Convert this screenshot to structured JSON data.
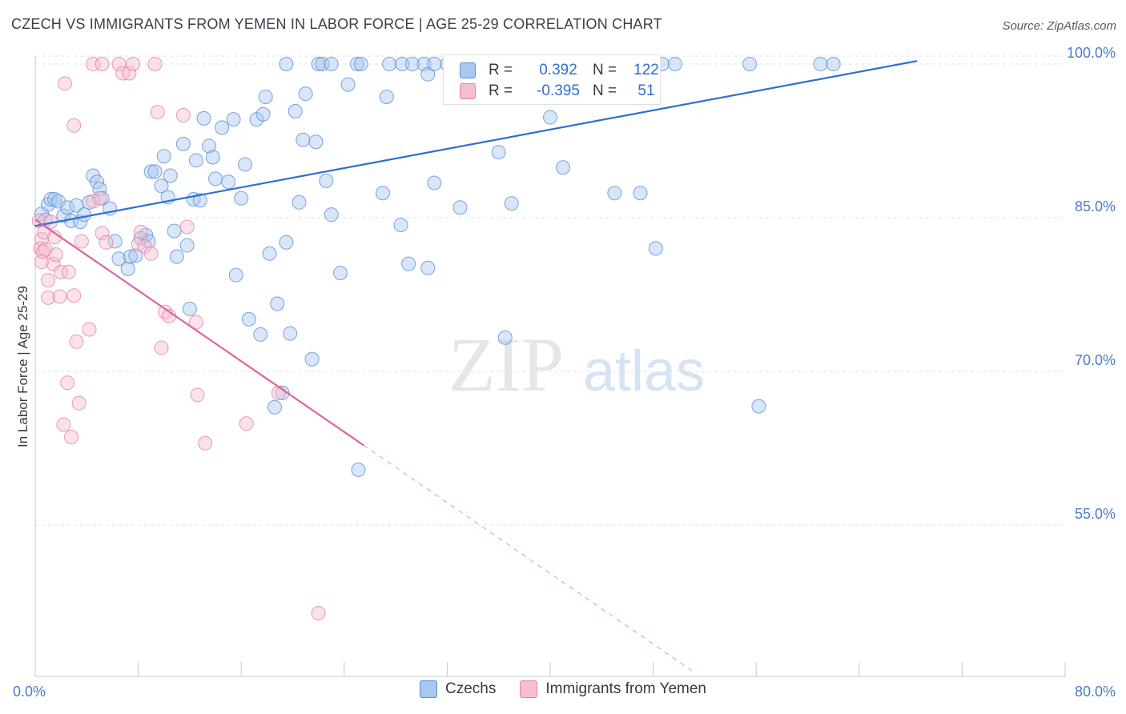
{
  "title": "CZECH VS IMMIGRANTS FROM YEMEN IN LABOR FORCE | AGE 25-29 CORRELATION CHART",
  "source": "Source: ZipAtlas.com",
  "watermark": {
    "zip": "ZIP",
    "atlas": "atlas"
  },
  "colors": {
    "blue": "#5b8fd6",
    "blue_fill": "#a9c8ef",
    "blue_line": "#2f6fce",
    "pink": "#e77fa2",
    "pink_fill": "#f5bfd0",
    "pink_line": "#e0659a",
    "tick_label": "#4a7cc9",
    "grid": "#dfe2e8"
  },
  "legend": {
    "stats": [
      {
        "r_label": "R =",
        "r_value": "0.392",
        "n_label": "N =",
        "n_value": "122"
      },
      {
        "r_label": "R =",
        "r_value": "-0.395",
        "n_label": "N =",
        "n_value": "51"
      }
    ],
    "bottom": [
      "Czechs",
      "Immigrants from Yemen"
    ]
  },
  "chart_data": {
    "type": "scatter",
    "xlabel": "",
    "ylabel": "In Labor Force | Age 25-29",
    "xlim": [
      0,
      80
    ],
    "ylim": [
      40,
      104
    ],
    "x_ticks": [
      0,
      8,
      16,
      24,
      32,
      40,
      48,
      56,
      64,
      72,
      80
    ],
    "x_tick_labels": [
      {
        "value": 0,
        "label": "0.0%"
      },
      {
        "value": 80,
        "label": "80.0%"
      }
    ],
    "y_ticks": [
      {
        "value": 55,
        "label": "55.0%"
      },
      {
        "value": 70,
        "label": "70.0%"
      },
      {
        "value": 85,
        "label": "85.0%"
      },
      {
        "value": 100,
        "label": "100.0%"
      }
    ],
    "grid": true,
    "legend_position": "top-center",
    "series": [
      {
        "name": "Czechs",
        "trend": {
          "x": [
            0,
            68.5
          ],
          "y": [
            84.2,
            100.3
          ]
        },
        "points": [
          [
            0.5,
            85.4
          ],
          [
            0.8,
            84.8
          ],
          [
            1.0,
            86.3
          ],
          [
            1.2,
            86.8
          ],
          [
            1.5,
            86.8
          ],
          [
            1.8,
            86.6
          ],
          [
            2.2,
            85.2
          ],
          [
            2.5,
            86.0
          ],
          [
            2.8,
            84.7
          ],
          [
            3.2,
            86.2
          ],
          [
            3.5,
            84.6
          ],
          [
            3.8,
            85.3
          ],
          [
            4.2,
            86.5
          ],
          [
            4.5,
            89.1
          ],
          [
            4.8,
            88.5
          ],
          [
            5.0,
            87.8
          ],
          [
            5.2,
            86.9
          ],
          [
            5.8,
            85.9
          ],
          [
            6.2,
            82.7
          ],
          [
            6.5,
            81.0
          ],
          [
            7.2,
            80.0
          ],
          [
            7.4,
            81.2
          ],
          [
            7.8,
            81.3
          ],
          [
            8.2,
            83.0
          ],
          [
            8.6,
            83.3
          ],
          [
            8.8,
            82.7
          ],
          [
            9.0,
            89.5
          ],
          [
            9.3,
            89.5
          ],
          [
            9.8,
            88.1
          ],
          [
            10.0,
            91.0
          ],
          [
            10.3,
            87.0
          ],
          [
            10.5,
            89.1
          ],
          [
            10.8,
            83.7
          ],
          [
            11.0,
            81.2
          ],
          [
            11.5,
            92.2
          ],
          [
            11.8,
            82.3
          ],
          [
            12.0,
            76.1
          ],
          [
            12.3,
            86.8
          ],
          [
            12.5,
            90.6
          ],
          [
            12.8,
            86.7
          ],
          [
            13.1,
            94.7
          ],
          [
            13.5,
            92.0
          ],
          [
            13.8,
            90.9
          ],
          [
            14.0,
            88.8
          ],
          [
            14.5,
            93.8
          ],
          [
            15.0,
            88.5
          ],
          [
            15.4,
            94.6
          ],
          [
            15.6,
            79.4
          ],
          [
            16.0,
            86.9
          ],
          [
            16.3,
            90.2
          ],
          [
            16.6,
            75.1
          ],
          [
            17.2,
            94.6
          ],
          [
            17.5,
            73.6
          ],
          [
            17.7,
            95.1
          ],
          [
            17.9,
            96.8
          ],
          [
            18.2,
            81.5
          ],
          [
            18.6,
            66.5
          ],
          [
            18.8,
            76.6
          ],
          [
            19.2,
            67.9
          ],
          [
            19.5,
            82.6
          ],
          [
            19.8,
            73.7
          ],
          [
            20.2,
            95.4
          ],
          [
            20.5,
            86.5
          ],
          [
            20.8,
            92.6
          ],
          [
            21.0,
            97.1
          ],
          [
            21.5,
            71.2
          ],
          [
            21.8,
            92.4
          ],
          [
            22.6,
            88.6
          ],
          [
            23.0,
            85.3
          ],
          [
            23.7,
            79.6
          ],
          [
            24.3,
            98.0
          ],
          [
            25.1,
            60.4
          ],
          [
            27.0,
            87.4
          ],
          [
            27.3,
            96.8
          ],
          [
            28.4,
            84.3
          ],
          [
            29.0,
            80.5
          ],
          [
            30.5,
            80.1
          ],
          [
            31.0,
            88.4
          ],
          [
            33.0,
            86.0
          ],
          [
            36.0,
            91.4
          ],
          [
            36.5,
            73.3
          ],
          [
            37.0,
            86.4
          ],
          [
            40.0,
            94.8
          ],
          [
            41.0,
            89.9
          ],
          [
            45.0,
            87.4
          ],
          [
            47.0,
            87.4
          ],
          [
            48.2,
            82.0
          ],
          [
            56.2,
            66.6
          ],
          [
            19.5,
            100.0
          ],
          [
            22.0,
            100.0
          ],
          [
            22.3,
            100.0
          ],
          [
            23.0,
            100.0
          ],
          [
            25.0,
            100.0
          ],
          [
            25.3,
            100.0
          ],
          [
            27.5,
            100.0
          ],
          [
            28.5,
            100.0
          ],
          [
            29.3,
            100.0
          ],
          [
            30.2,
            100.0
          ],
          [
            30.5,
            99.0
          ],
          [
            31.0,
            100.0
          ],
          [
            32.0,
            100.0
          ],
          [
            32.3,
            100.0
          ],
          [
            33.5,
            100.0
          ],
          [
            34.0,
            100.0
          ],
          [
            35.3,
            100.0
          ],
          [
            36.0,
            100.0
          ],
          [
            37.0,
            100.0
          ],
          [
            38.5,
            100.0
          ],
          [
            39.0,
            100.0
          ],
          [
            40.0,
            100.0
          ],
          [
            41.5,
            100.0
          ],
          [
            42.0,
            100.0
          ],
          [
            43.5,
            100.0
          ],
          [
            44.0,
            100.0
          ],
          [
            45.0,
            100.0
          ],
          [
            46.0,
            100.0
          ],
          [
            47.0,
            100.0
          ],
          [
            48.0,
            100.0
          ],
          [
            48.7,
            100.0
          ],
          [
            49.7,
            100.0
          ],
          [
            55.5,
            100.0
          ],
          [
            61.0,
            100.0
          ],
          [
            62.0,
            100.0
          ]
        ]
      },
      {
        "name": "Immigrants from Yemen",
        "trend": {
          "x": [
            0,
            25.5
          ],
          "y": [
            84.8,
            62.8
          ]
        },
        "trend_ext": {
          "x": [
            25.5,
            51
          ],
          "y": [
            62.8,
            40.8
          ]
        },
        "points": [
          [
            0.3,
            84.7
          ],
          [
            0.4,
            82.0
          ],
          [
            0.5,
            80.7
          ],
          [
            0.5,
            82.9
          ],
          [
            0.6,
            81.7
          ],
          [
            0.7,
            83.6
          ],
          [
            0.8,
            81.9
          ],
          [
            1.0,
            78.9
          ],
          [
            1.0,
            77.2
          ],
          [
            1.2,
            84.6
          ],
          [
            1.4,
            80.5
          ],
          [
            1.5,
            83.1
          ],
          [
            1.6,
            81.4
          ],
          [
            1.9,
            77.3
          ],
          [
            2.0,
            79.7
          ],
          [
            2.2,
            64.8
          ],
          [
            2.5,
            68.9
          ],
          [
            2.6,
            79.7
          ],
          [
            2.8,
            63.6
          ],
          [
            3.0,
            77.4
          ],
          [
            3.0,
            94.0
          ],
          [
            3.2,
            72.9
          ],
          [
            3.4,
            66.9
          ],
          [
            3.6,
            82.7
          ],
          [
            4.2,
            74.1
          ],
          [
            4.5,
            86.6
          ],
          [
            5.0,
            86.9
          ],
          [
            5.2,
            83.5
          ],
          [
            5.5,
            82.6
          ],
          [
            6.5,
            100.0
          ],
          [
            6.8,
            99.1
          ],
          [
            7.3,
            99.1
          ],
          [
            7.6,
            100.0
          ],
          [
            2.3,
            98.1
          ],
          [
            4.5,
            100.0
          ],
          [
            5.2,
            100.0
          ],
          [
            8.0,
            82.4
          ],
          [
            8.2,
            83.6
          ],
          [
            8.5,
            82.2
          ],
          [
            9.0,
            81.5
          ],
          [
            9.3,
            100.0
          ],
          [
            9.5,
            95.3
          ],
          [
            9.8,
            72.3
          ],
          [
            10.1,
            75.8
          ],
          [
            10.4,
            75.4
          ],
          [
            11.5,
            95.0
          ],
          [
            11.8,
            84.1
          ],
          [
            12.5,
            74.8
          ],
          [
            12.6,
            67.7
          ],
          [
            13.2,
            63.0
          ],
          [
            16.4,
            64.9
          ],
          [
            18.9,
            67.9
          ],
          [
            22.0,
            46.4
          ]
        ]
      }
    ]
  }
}
